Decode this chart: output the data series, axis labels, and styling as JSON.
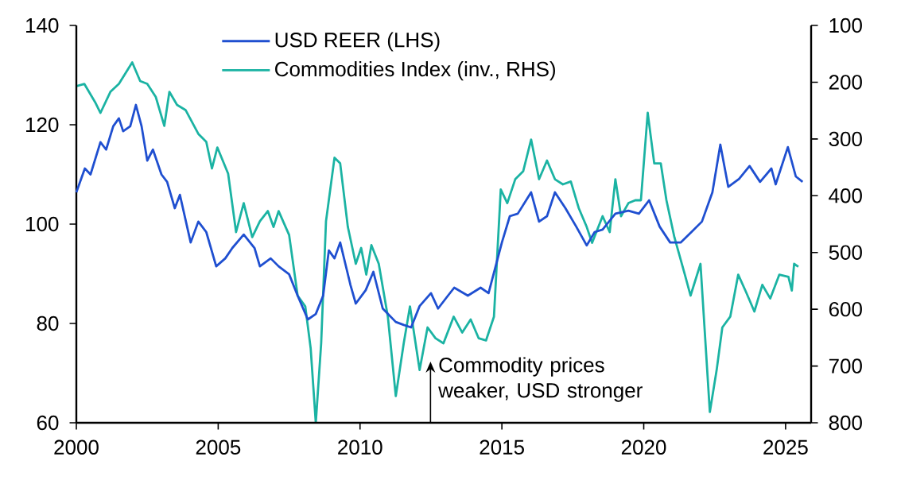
{
  "chart_data": {
    "type": "line",
    "xlim": [
      2000,
      2025.9
    ],
    "xticks": [
      2000,
      2005,
      2010,
      2015,
      2020,
      2025
    ],
    "ylim": [
      60,
      140
    ],
    "yticks": [
      60,
      80,
      100,
      120,
      140
    ],
    "y2lim": [
      800,
      100
    ],
    "y2ticks": [
      100,
      200,
      300,
      400,
      500,
      600,
      700,
      800
    ],
    "legend": "top",
    "grid": false,
    "series": [
      {
        "name": "USD REER (LHS)",
        "color": "#1f4fd0",
        "axis": "y",
        "x": [
          2000,
          2000.3,
          2000.5,
          2000.85,
          2001.05,
          2001.3,
          2001.5,
          2001.65,
          2001.9,
          2002.1,
          2002.3,
          2002.5,
          2002.7,
          2003.0,
          2003.2,
          2003.47,
          2003.65,
          2004.03,
          2004.3,
          2004.58,
          2004.93,
          2005.25,
          2005.5,
          2005.9,
          2006.28,
          2006.47,
          2006.85,
          2007.13,
          2007.5,
          2007.8,
          2008.16,
          2008.44,
          2008.7,
          2008.9,
          2009.1,
          2009.3,
          2009.66,
          2009.85,
          2010.2,
          2010.47,
          2010.8,
          2011.26,
          2011.54,
          2011.8,
          2012.1,
          2012.5,
          2012.75,
          2013.1,
          2013.32,
          2013.8,
          2014.25,
          2014.53,
          2015.0,
          2015.28,
          2015.56,
          2016.03,
          2016.31,
          2016.59,
          2016.87,
          2017.24,
          2017.62,
          2017.99,
          2018.27,
          2018.55,
          2019.0,
          2019.46,
          2019.83,
          2020.19,
          2020.56,
          2020.93,
          2021.3,
          2021.68,
          2022.05,
          2022.42,
          2022.7,
          2022.98,
          2023.36,
          2023.73,
          2024.1,
          2024.5,
          2024.65,
          2025.08,
          2025.36,
          2025.6
        ],
        "values": [
          106.4,
          111.2,
          110,
          116.5,
          115,
          119.7,
          121.3,
          118.7,
          119.7,
          124,
          119.7,
          112.8,
          115,
          110,
          108.5,
          103.2,
          105.9,
          96.3,
          100.5,
          98.4,
          91.5,
          93.1,
          95.2,
          97.9,
          95.2,
          91.5,
          93.1,
          91.5,
          89.9,
          85.6,
          80.8,
          81.9,
          85.6,
          94.7,
          93.1,
          96.3,
          87.8,
          84,
          86.7,
          90.4,
          83,
          80.3,
          79.7,
          79.2,
          83.5,
          86.1,
          83,
          85.6,
          87.2,
          85.6,
          87.2,
          86.1,
          96.3,
          101.6,
          102.1,
          106.4,
          100.5,
          101.6,
          106.4,
          103.2,
          99.5,
          95.7,
          98.4,
          98.9,
          102.1,
          102.7,
          102.1,
          104.8,
          99.5,
          96.3,
          96.3,
          98.4,
          100.5,
          106.4,
          116,
          107.5,
          109.1,
          111.7,
          108.5,
          111.2,
          108,
          115.5,
          109.6,
          108.5
        ]
      },
      {
        "name": "Commodities Index (inv., RHS)",
        "color": "#1bb3a3",
        "axis": "y2",
        "x": [
          2000,
          2000.28,
          2000.66,
          2000.85,
          2001.2,
          2001.5,
          2001.97,
          2002.25,
          2002.5,
          2002.8,
          2003.1,
          2003.28,
          2003.55,
          2003.85,
          2004.3,
          2004.58,
          2004.78,
          2004.97,
          2005.35,
          2005.63,
          2005.9,
          2006.2,
          2006.47,
          2006.75,
          2006.95,
          2007.13,
          2007.5,
          2007.8,
          2008.07,
          2008.26,
          2008.44,
          2008.63,
          2008.8,
          2009.1,
          2009.3,
          2009.57,
          2009.85,
          2010.04,
          2010.22,
          2010.4,
          2010.66,
          2010.98,
          2011.26,
          2011.54,
          2011.76,
          2012.1,
          2012.38,
          2012.66,
          2012.94,
          2013.3,
          2013.6,
          2013.9,
          2014.18,
          2014.44,
          2014.72,
          2014.96,
          2015.19,
          2015.47,
          2015.75,
          2016.03,
          2016.31,
          2016.59,
          2016.87,
          2017.15,
          2017.43,
          2017.71,
          2017.99,
          2018.18,
          2018.55,
          2018.8,
          2019.0,
          2019.2,
          2019.46,
          2019.7,
          2019.9,
          2020.14,
          2020.37,
          2020.6,
          2020.8,
          2021.08,
          2021.45,
          2021.65,
          2022.0,
          2022.33,
          2022.57,
          2022.77,
          2023.05,
          2023.33,
          2023.6,
          2023.9,
          2024.18,
          2024.46,
          2024.78,
          2025.1,
          2025.22,
          2025.3,
          2025.45
        ],
        "values": [
          207,
          203,
          235,
          254,
          217,
          203,
          165,
          198,
          203,
          226,
          277,
          217,
          240,
          249,
          291,
          305,
          352,
          315,
          361,
          464,
          413,
          473,
          445,
          427,
          455,
          427,
          469,
          576,
          595,
          669,
          800,
          660,
          445,
          333,
          343,
          455,
          520,
          492,
          539,
          487,
          520,
          613,
          753,
          660,
          595,
          707,
          632,
          651,
          660,
          613,
          641,
          618,
          651,
          655,
          613,
          389,
          413,
          371,
          357,
          301,
          371,
          338,
          371,
          380,
          375,
          422,
          455,
          483,
          436,
          464,
          371,
          436,
          413,
          408,
          408,
          254,
          343,
          343,
          408,
          473,
          539,
          576,
          520,
          781,
          707,
          632,
          613,
          539,
          569,
          604,
          557,
          581,
          539,
          543,
          567,
          520,
          525
        ]
      }
    ],
    "annotations": [
      "Commodity prices weaker, USD stronger"
    ]
  }
}
